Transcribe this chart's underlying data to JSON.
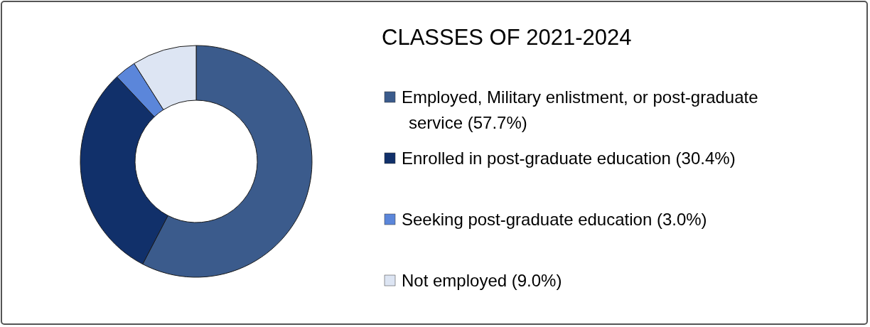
{
  "chart_data": {
    "type": "donut",
    "title": "CLASSES OF 2021-2024",
    "categories": [
      "Employed, Military enlistment, or post-graduate service (57.7%)",
      "Enrolled in post-graduate education (30.4%)",
      "Seeking post-graduate education (3.0%)",
      "Not employed (9.0%)"
    ],
    "values": [
      57.7,
      30.4,
      3.0,
      9.0
    ],
    "colors": [
      "#3b5b8c",
      "#11306a",
      "#5b86da",
      "#dde5f3"
    ],
    "legend": "right"
  }
}
